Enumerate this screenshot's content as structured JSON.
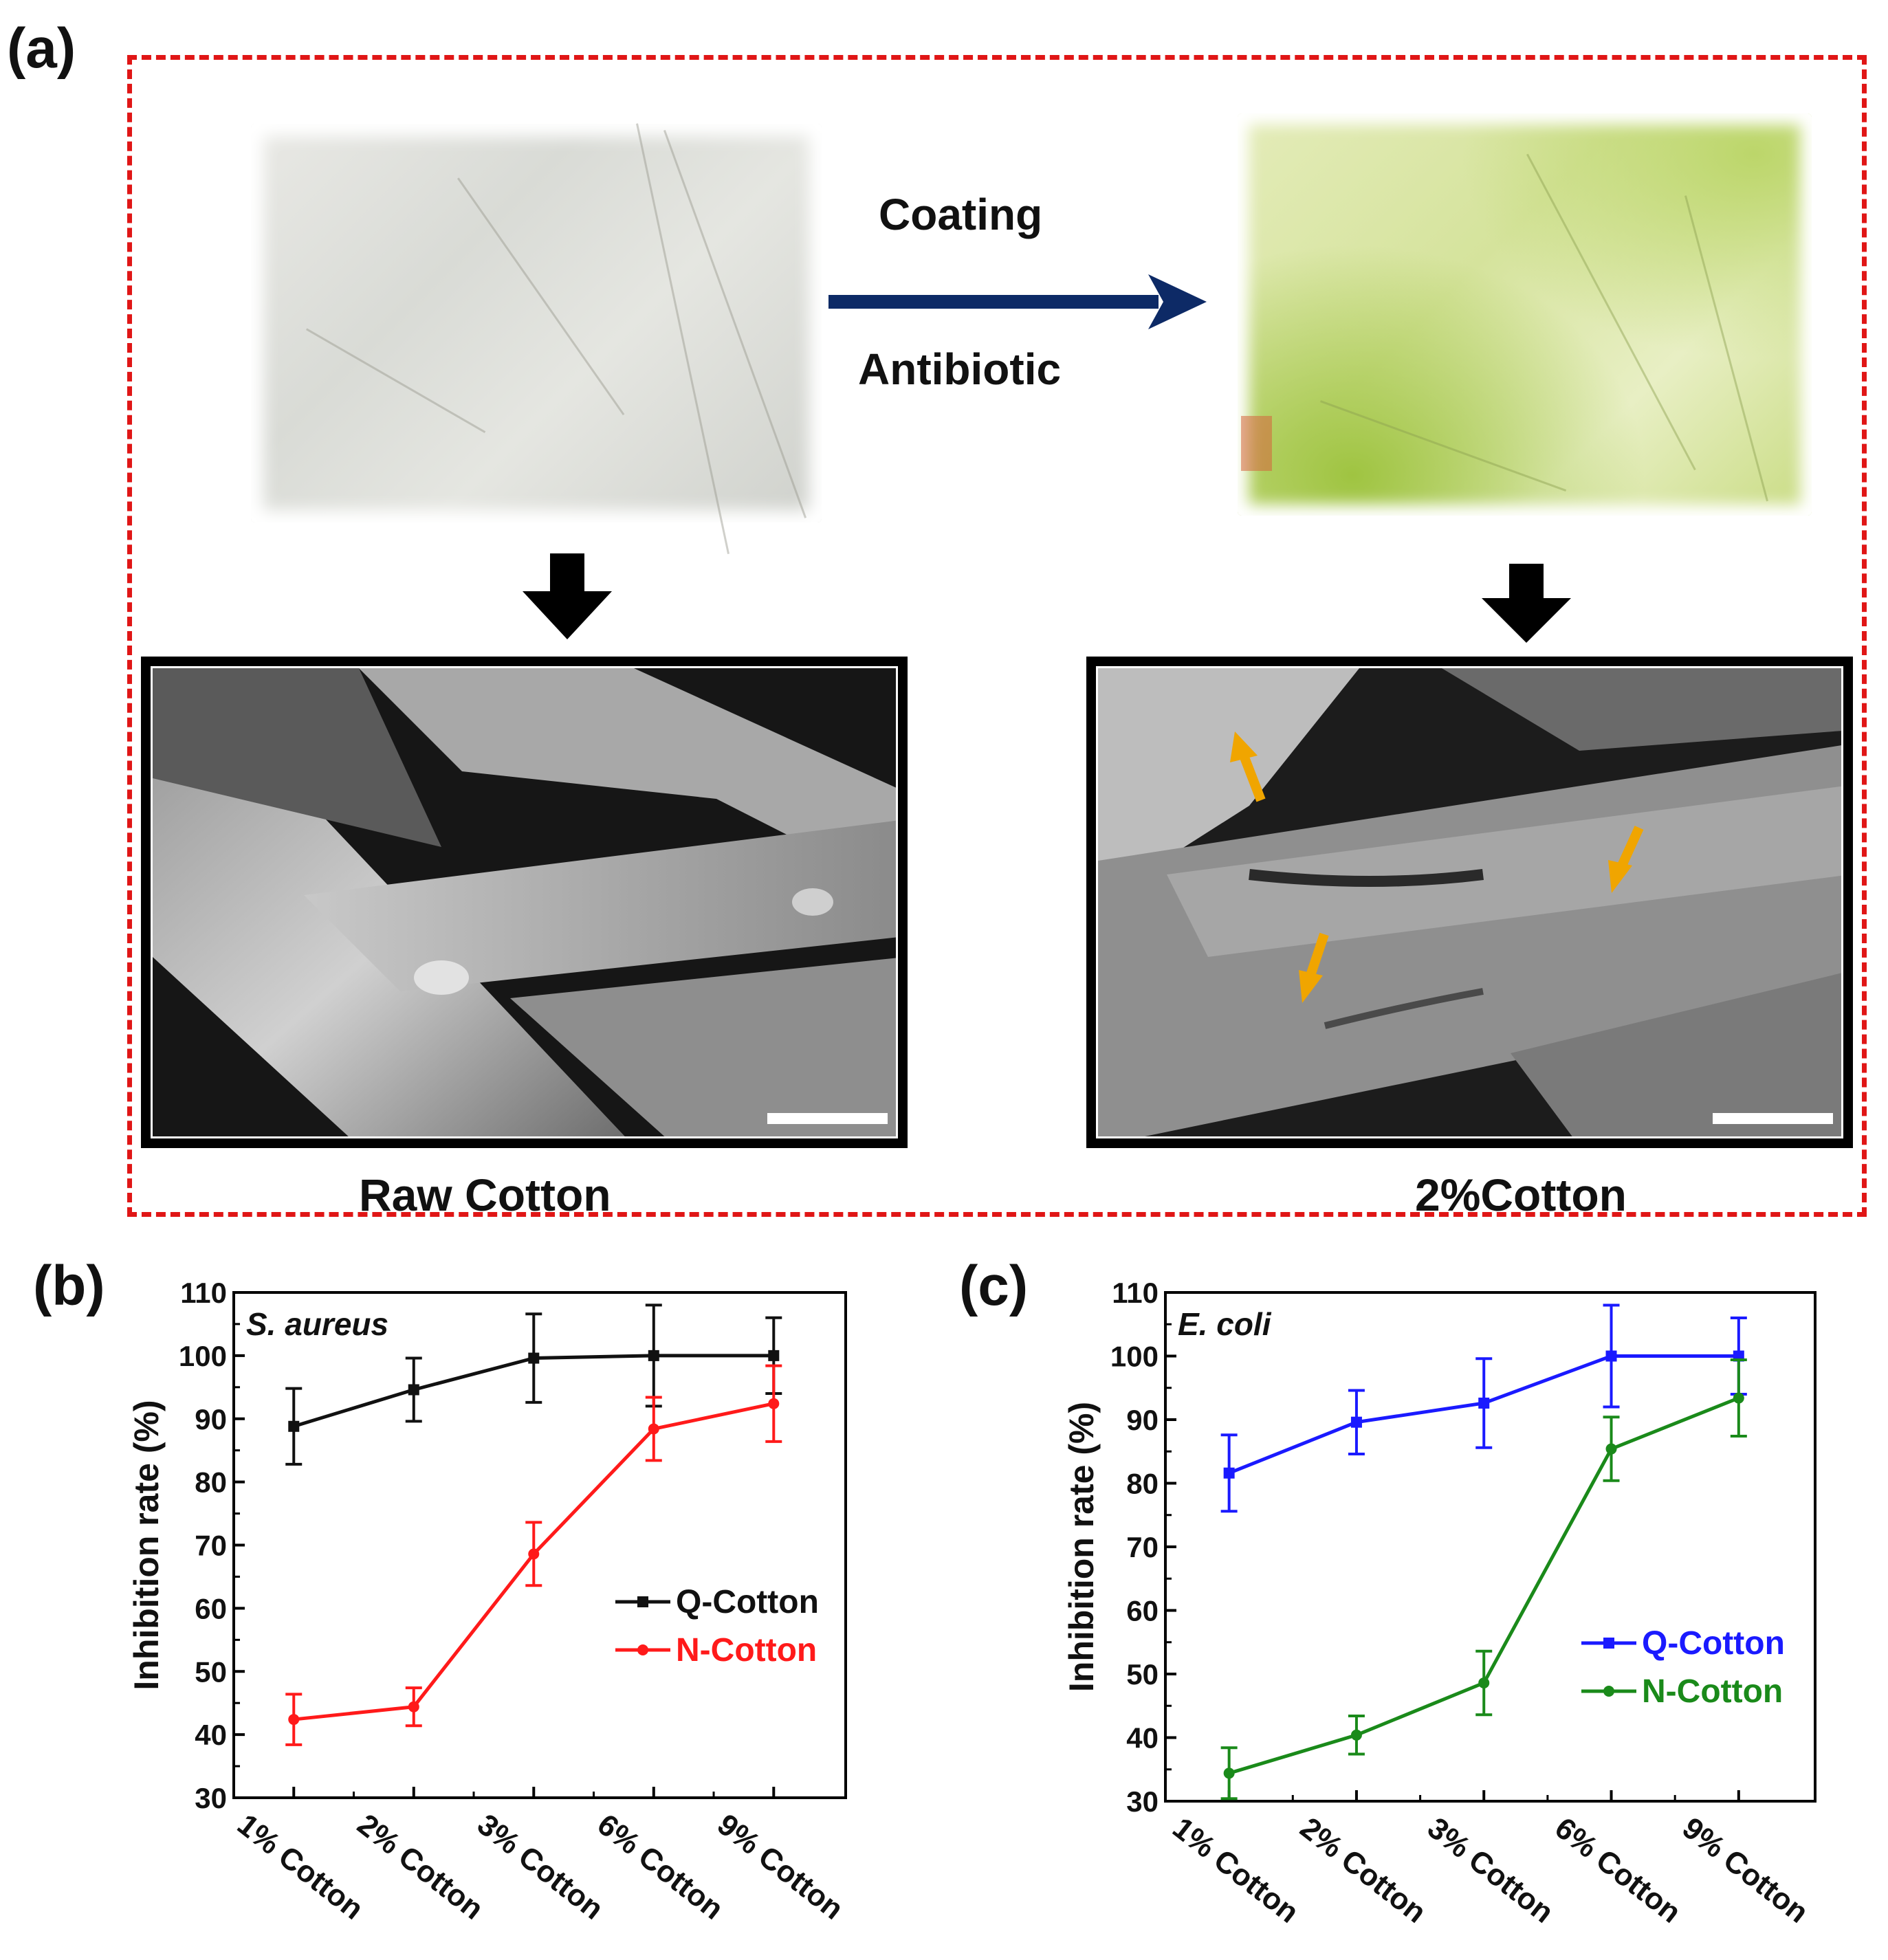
{
  "panels": {
    "a": {
      "label": "(a)",
      "step_top": "Coating",
      "step_bottom": "Antibiotic",
      "left_caption": "Raw Cotton",
      "right_caption": "2%Cotton",
      "arrow_color": "#0d2a66",
      "orange_arrow_color": "#f0a500",
      "dashed_color": "#e01616"
    },
    "b": {
      "label": "(b)"
    },
    "c": {
      "label": "(c)"
    }
  },
  "chart_data": [
    {
      "type": "line",
      "panel": "b",
      "annotation": "S. aureus",
      "categories": [
        "1% Cotton",
        "2% Cotton",
        "3% Cotton",
        "6% Cotton",
        "9% Cotton"
      ],
      "ylabel": "Inhibition rate (%)",
      "ylim": [
        30,
        110
      ],
      "yticks": [
        30,
        40,
        50,
        60,
        70,
        80,
        90,
        100,
        110
      ],
      "legend_position": "center-right",
      "series": [
        {
          "name": "Q-Cotton",
          "color": "#111111",
          "marker": "square",
          "values": [
            88.8,
            94.6,
            99.6,
            100,
            100
          ],
          "errors": [
            6,
            5,
            7,
            8,
            6
          ]
        },
        {
          "name": "N-Cotton",
          "color": "#ff1a1a",
          "marker": "circle",
          "values": [
            42.4,
            44.4,
            68.6,
            88.4,
            92.4
          ],
          "errors": [
            4,
            3,
            5,
            5,
            6
          ]
        }
      ]
    },
    {
      "type": "line",
      "panel": "c",
      "annotation": "E. coli",
      "categories": [
        "1% Cotton",
        "2% Cotton",
        "3% Cotton",
        "6% Cotton",
        "9% Cotton"
      ],
      "ylabel": "Inhibition rate (%)",
      "ylim": [
        30,
        110
      ],
      "yticks": [
        30,
        40,
        50,
        60,
        70,
        80,
        90,
        100,
        110
      ],
      "legend_position": "center-right",
      "series": [
        {
          "name": "Q-Cotton",
          "color": "#1a1aff",
          "marker": "square",
          "values": [
            81.6,
            89.6,
            92.6,
            100,
            100
          ],
          "errors": [
            6,
            5,
            7,
            8,
            6
          ]
        },
        {
          "name": "N-Cotton",
          "color": "#1a8a1a",
          "marker": "circle",
          "values": [
            34.4,
            40.4,
            48.6,
            85.4,
            93.4
          ],
          "errors": [
            4,
            3,
            5,
            5,
            6
          ]
        }
      ]
    }
  ]
}
